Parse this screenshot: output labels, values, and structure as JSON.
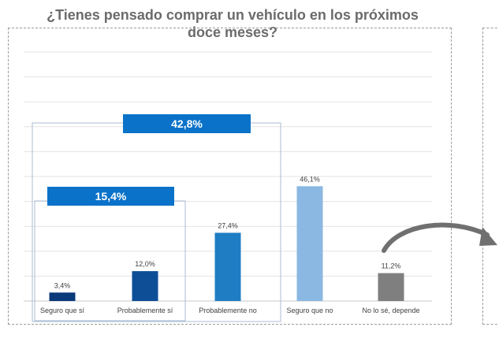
{
  "title_line1": "¿Tienes pensado comprar un vehículo en los próximos",
  "title_line2": "doce meses?",
  "chart_data": {
    "type": "bar",
    "title": "¿Tienes pensado comprar un vehículo en los próximos doce meses?",
    "categories": [
      "Seguro que sí",
      "Probablemente sí",
      "Probablemente no",
      "Seguro que no",
      "No lo sé, depende"
    ],
    "values": [
      3.4,
      12.0,
      27.4,
      46.1,
      11.2
    ],
    "data_labels": [
      "3,4%",
      "12,0%",
      "27,4%",
      "46,1%",
      "11,2%"
    ],
    "colors": [
      "#0b3a7a",
      "#0e4e96",
      "#1f7dc4",
      "#8bb8e2",
      "#7f7f7f"
    ],
    "ylim": [
      0,
      100
    ],
    "grid": true
  },
  "groups": [
    {
      "label": "42,8%",
      "value": 42.8,
      "color": "#0a72c9"
    },
    {
      "label": "15,4%",
      "value": 15.4,
      "color": "#0a72c9"
    }
  ],
  "decoration": {
    "arrow_color": "#707070",
    "group_border_color": "#a9bcd3"
  }
}
